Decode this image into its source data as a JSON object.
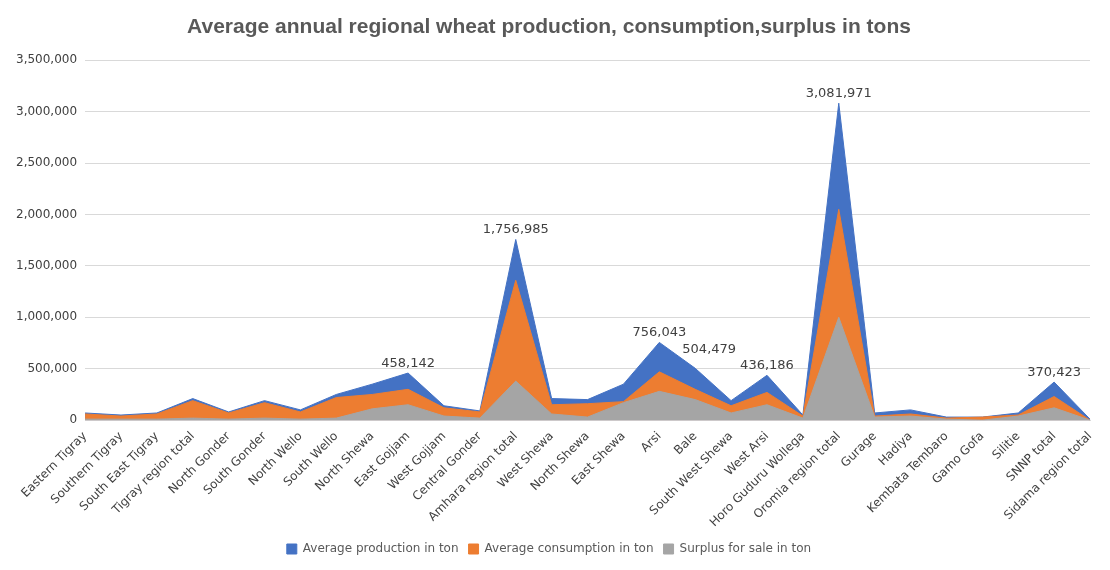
{
  "chart_data": {
    "type": "area",
    "title": "Average annual regional wheat production, consumption,surplus in tons",
    "categories": [
      "Eastern Tigray",
      "Southern Tigray",
      "South East Tigray",
      "Tigray region total",
      "North Gonder",
      "South Gonder",
      "North Wello",
      "South Wello",
      "North Shewa",
      "East Gojjam",
      "West Gojjam",
      "Central Gonder",
      "Amhara region total",
      "West Shewa",
      "North Shewa",
      "East Shewa",
      "Arsi",
      "Bale",
      "South West Shewa",
      "West Arsi",
      "Horo Guduru Wollega",
      "Oromia region total",
      "Gurage",
      "Hadiya",
      "Kembata Tembaro",
      "Gamo Gofa",
      "Silitie",
      "SNNP total",
      "Sidama region total"
    ],
    "series": [
      {
        "name": "Average production in ton",
        "color": "#4472c4",
        "values": [
          70000,
          50000,
          70000,
          210000,
          80000,
          190000,
          100000,
          250000,
          350000,
          458142,
          140000,
          90000,
          1756985,
          210000,
          200000,
          350000,
          756043,
          504479,
          190000,
          436186,
          50000,
          3081971,
          70000,
          100000,
          30000,
          30000,
          70000,
          370423,
          10000
        ],
        "value_labels": [
          null,
          null,
          null,
          null,
          null,
          null,
          null,
          null,
          null,
          "458,142",
          null,
          null,
          "1,756,985",
          null,
          null,
          null,
          "756,043",
          "504,479",
          null,
          "436,186",
          null,
          "3,081,971",
          null,
          null,
          null,
          null,
          null,
          "370,423",
          null
        ]
      },
      {
        "name": "Average consumption in ton",
        "color": "#ed7d31",
        "values": [
          60000,
          40000,
          60000,
          190000,
          70000,
          170000,
          80000,
          220000,
          250000,
          300000,
          120000,
          80000,
          1360000,
          150000,
          160000,
          180000,
          470000,
          300000,
          140000,
          270000,
          40000,
          2050000,
          40000,
          60000,
          20000,
          30000,
          50000,
          230000,
          0
        ]
      },
      {
        "name": "Surplus for sale in ton",
        "color": "#a5a5a5",
        "values": [
          10000,
          10000,
          10000,
          20000,
          10000,
          20000,
          10000,
          20000,
          110000,
          150000,
          40000,
          20000,
          380000,
          60000,
          30000,
          170000,
          280000,
          200000,
          70000,
          150000,
          20000,
          1000000,
          30000,
          40000,
          10000,
          0,
          40000,
          120000,
          0
        ]
      }
    ],
    "ylim": [
      0,
      3500000
    ],
    "yticks": [
      0,
      {
        "value": 500000,
        "label": "500,000"
      },
      {
        "value": 1000000,
        "label": "1,000,000"
      },
      {
        "value": 1500000,
        "label": "1,500,000"
      },
      {
        "value": 2000000,
        "label": "2,000,000"
      },
      {
        "value": 2500000,
        "label": "2,500,000"
      },
      {
        "value": 3000000,
        "label": "3,000,000"
      },
      {
        "value": 3500000,
        "label": "3,500,000"
      }
    ],
    "grid": "y",
    "legend": "bottom",
    "marker": "none"
  }
}
